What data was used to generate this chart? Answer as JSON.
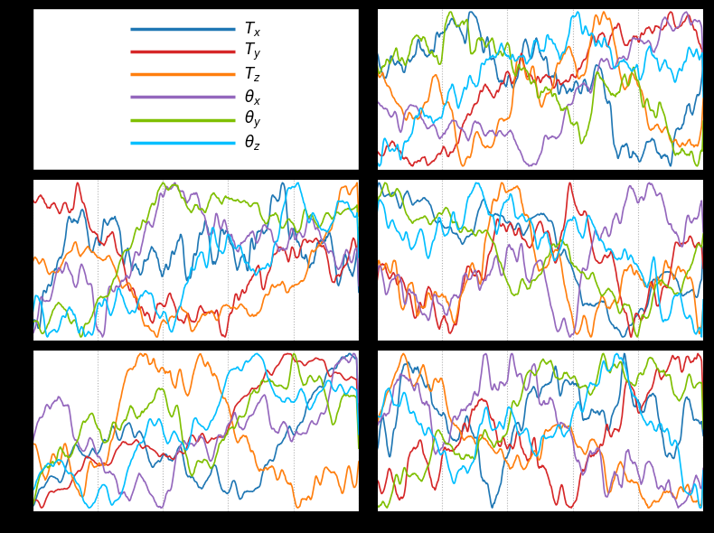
{
  "colors": {
    "Tx": "#1f77b4",
    "Ty": "#d62728",
    "Tz": "#ff7f0e",
    "thx": "#9467bd",
    "thy": "#7fbf00",
    "thz": "#00bfff"
  },
  "legend_labels": [
    "$T_x$",
    "$T_y$",
    "$T_z$",
    "$\\theta_x$",
    "$\\theta_y$",
    "$\\theta_z$"
  ],
  "n_points": 600,
  "background": "#000000",
  "panel_bg": "#ffffff",
  "grid_color": "#cccccc",
  "linewidth": 1.2
}
